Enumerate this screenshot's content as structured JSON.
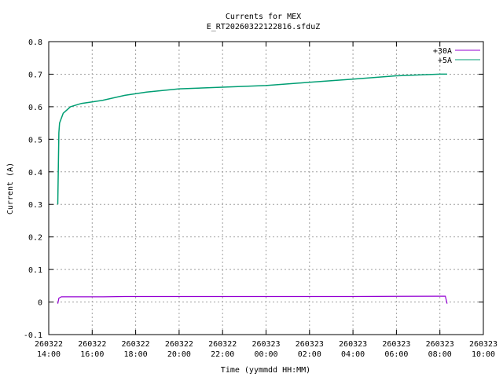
{
  "chart_data": {
    "type": "line",
    "title": "Currents for MEX",
    "subtitle": "E_RT20260322122816.sfduZ",
    "xlabel": "Time (yymmdd HH:MM)",
    "ylabel": "Current (A)",
    "xlim": [
      "2026-03-22 14:00",
      "2026-03-23 10:00"
    ],
    "ylim": [
      -0.1,
      0.8
    ],
    "yticks": [
      -0.1,
      0,
      0.1,
      0.2,
      0.3,
      0.4,
      0.5,
      0.6,
      0.7,
      0.8
    ],
    "ytick_labels": [
      "-0.1",
      "0",
      "0.1",
      "0.2",
      "0.3",
      "0.4",
      "0.5",
      "0.6",
      "0.7",
      "0.8"
    ],
    "xticks": [
      {
        "t": "2026-03-22 14:00",
        "l1": "260322",
        "l2": "14:00"
      },
      {
        "t": "2026-03-22 16:00",
        "l1": "260322",
        "l2": "16:00"
      },
      {
        "t": "2026-03-22 18:00",
        "l1": "260322",
        "l2": "18:00"
      },
      {
        "t": "2026-03-22 20:00",
        "l1": "260322",
        "l2": "20:00"
      },
      {
        "t": "2026-03-22 22:00",
        "l1": "260322",
        "l2": "22:00"
      },
      {
        "t": "2026-03-23 00:00",
        "l1": "260323",
        "l2": "00:00"
      },
      {
        "t": "2026-03-23 02:00",
        "l1": "260323",
        "l2": "02:00"
      },
      {
        "t": "2026-03-23 04:00",
        "l1": "260323",
        "l2": "04:00"
      },
      {
        "t": "2026-03-23 06:00",
        "l1": "260323",
        "l2": "06:00"
      },
      {
        "t": "2026-03-23 08:00",
        "l1": "260323",
        "l2": "08:00"
      },
      {
        "t": "2026-03-23 10:00",
        "l1": "260323",
        "l2": "10:00"
      }
    ],
    "grid": true,
    "legend_position": "top-right",
    "series": [
      {
        "name": "+30A",
        "color": "#9400d3",
        "x": [
          "2026-03-22 14:25",
          "2026-03-22 14:28",
          "2026-03-22 14:35",
          "2026-03-22 15:00",
          "2026-03-22 16:00",
          "2026-03-22 16:30",
          "2026-03-22 17:30",
          "2026-03-22 20:00",
          "2026-03-23 00:00",
          "2026-03-23 04:00",
          "2026-03-23 08:00",
          "2026-03-23 08:15",
          "2026-03-23 08:20"
        ],
        "y": [
          -0.005,
          0.012,
          0.016,
          0.016,
          0.016,
          0.016,
          0.017,
          0.017,
          0.017,
          0.017,
          0.018,
          0.018,
          -0.005
        ]
      },
      {
        "name": "+5A",
        "color": "#009e73",
        "x": [
          "2026-03-22 14:25",
          "2026-03-22 14:28",
          "2026-03-22 14:30",
          "2026-03-22 14:40",
          "2026-03-22 15:00",
          "2026-03-22 15:30",
          "2026-03-22 16:00",
          "2026-03-22 16:30",
          "2026-03-22 17:30",
          "2026-03-22 18:30",
          "2026-03-22 20:00",
          "2026-03-22 22:00",
          "2026-03-23 00:00",
          "2026-03-23 02:00",
          "2026-03-23 04:00",
          "2026-03-23 06:00",
          "2026-03-23 08:00",
          "2026-03-23 08:20"
        ],
        "y": [
          0.3,
          0.52,
          0.55,
          0.58,
          0.6,
          0.61,
          0.615,
          0.62,
          0.635,
          0.645,
          0.655,
          0.66,
          0.665,
          0.675,
          0.685,
          0.695,
          0.7,
          0.7
        ]
      }
    ]
  }
}
